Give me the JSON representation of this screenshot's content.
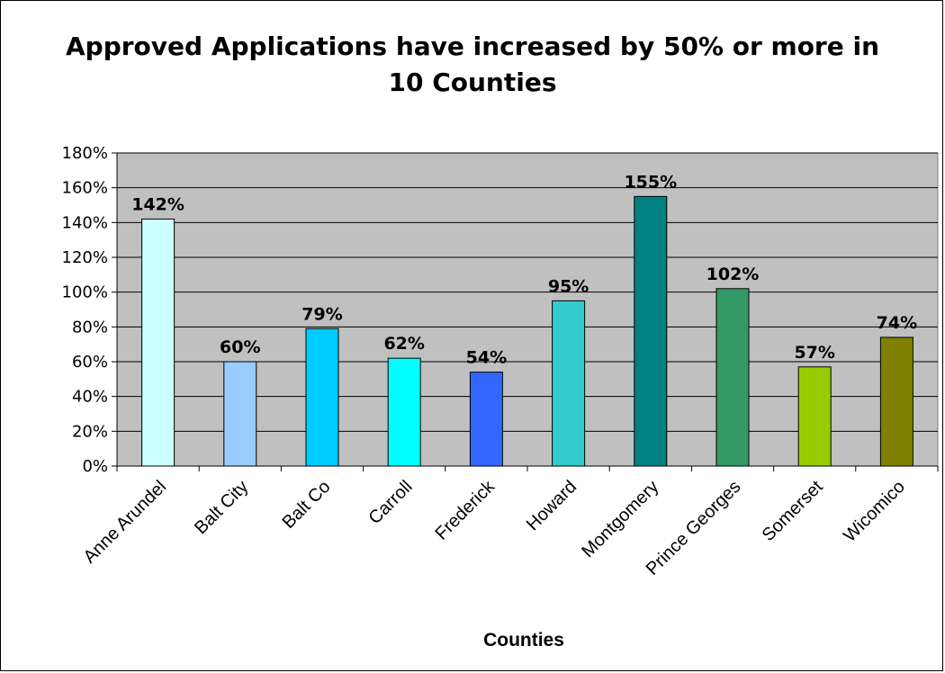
{
  "chart_data": {
    "type": "bar",
    "title": "Approved Applications have increased by 50% or more in 10 Counties",
    "xlabel": "Counties",
    "ylabel": "",
    "categories": [
      "Anne Arundel",
      "Balt City",
      "Balt Co",
      "Carroll",
      "Frederick",
      "Howard",
      "Montgomery",
      "Prince Georges",
      "Somerset",
      "Wicomico"
    ],
    "values": [
      142,
      60,
      79,
      62,
      54,
      95,
      155,
      102,
      57,
      74
    ],
    "data_labels": [
      "142%",
      "60%",
      "79%",
      "62%",
      "54%",
      "95%",
      "155%",
      "102%",
      "57%",
      "74%"
    ],
    "bar_colors": [
      "#CCFFFF",
      "#99CCFF",
      "#00CCFF",
      "#00FFFF",
      "#3366FF",
      "#33CCCC",
      "#008080",
      "#339966",
      "#99CC00",
      "#808000"
    ],
    "y_ticks": [
      0,
      20,
      40,
      60,
      80,
      100,
      120,
      140,
      160,
      180
    ],
    "y_tick_labels": [
      "0%",
      "20%",
      "40%",
      "60%",
      "80%",
      "100%",
      "120%",
      "140%",
      "160%",
      "180%"
    ],
    "ylim": [
      0,
      180
    ],
    "grid": true,
    "plot_background": "#C0C0C0",
    "legend": "none"
  }
}
